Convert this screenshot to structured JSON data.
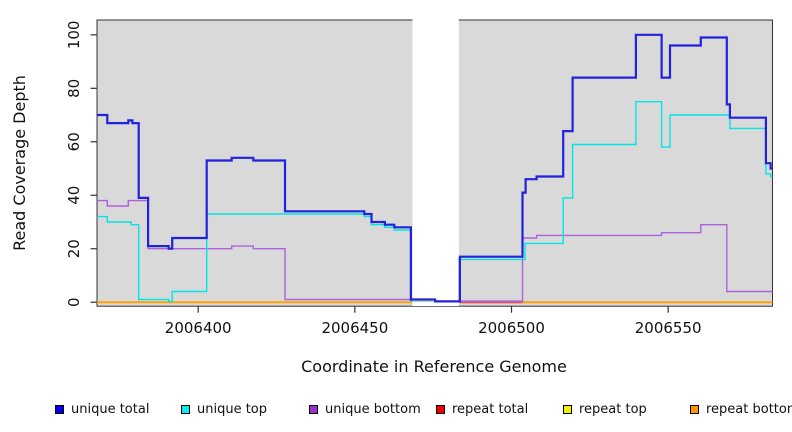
{
  "chart_data": {
    "type": "line",
    "subtype": "step-coverage-plot",
    "title": "",
    "xlabel": "Coordinate in Reference Genome",
    "ylabel": "Read Coverage Depth",
    "x_ticks": [
      "2006400",
      "2006450",
      "2006500",
      "2006550"
    ],
    "x_tick_values": [
      2006400,
      2006450,
      2006500,
      2006550
    ],
    "y_ticks": [
      "0",
      "20",
      "40",
      "60",
      "80",
      "100"
    ],
    "y_tick_values": [
      0,
      20,
      40,
      60,
      80,
      100
    ],
    "xlim": [
      2006367.7,
      2006583.3
    ],
    "ylim": [
      0,
      105.5
    ],
    "grid": false,
    "plot_background": "#d9d9d9",
    "masked_region": {
      "x0": 2006468,
      "x1": 2006483.5,
      "color": "#ffffff",
      "baseline_color": "#b7e0ae",
      "baseline_value": 0.3
    },
    "series": [
      {
        "name": "repeat bottom",
        "color": "#ff9f00",
        "width": 2,
        "points": [
          [
            2006367.7,
            0
          ]
        ],
        "end_x": 2006583.3
      },
      {
        "name": "repeat total",
        "color": "#e0506e",
        "width": 2,
        "points": [
          [
            2006483.5,
            0
          ]
        ],
        "end_x": 2006503.5
      },
      {
        "name": "repeat top",
        "color": "#e8e800",
        "width": 1.4,
        "points": [
          [
            2006468,
            0
          ]
        ],
        "end_x": 2006483.5
      },
      {
        "name": "unique bottom",
        "color": "#ad62dd",
        "width": 1.4,
        "points": [
          [
            2006367.7,
            38
          ],
          [
            2006371,
            36
          ],
          [
            2006377.7,
            38
          ],
          [
            2006384,
            20
          ],
          [
            2006410.7,
            21
          ],
          [
            2006417.6,
            20
          ],
          [
            2006427.7,
            1
          ],
          [
            2006467.9,
            0.4
          ],
          [
            2006503.5,
            24
          ],
          [
            2006508,
            25
          ],
          [
            2006547.9,
            26
          ],
          [
            2006560.4,
            29
          ],
          [
            2006568.7,
            4
          ]
        ],
        "end_x": 2006583.3
      },
      {
        "name": "unique top",
        "color": "#00e6e6",
        "width": 1.4,
        "points": [
          [
            2006367.7,
            32
          ],
          [
            2006371,
            30
          ],
          [
            2006378.6,
            29
          ],
          [
            2006381,
            1
          ],
          [
            2006390.6,
            0.3
          ],
          [
            2006391.7,
            4
          ],
          [
            2006402.7,
            33
          ],
          [
            2006453,
            32
          ],
          [
            2006455.3,
            29
          ],
          [
            2006459.6,
            28
          ],
          [
            2006462.6,
            27
          ],
          [
            2006467.9,
            0.3
          ],
          [
            2006483.5,
            16
          ],
          [
            2006504.3,
            22
          ],
          [
            2006516.5,
            39
          ],
          [
            2006519.5,
            59
          ],
          [
            2006539.7,
            75
          ],
          [
            2006547.9,
            58
          ],
          [
            2006550.6,
            70
          ],
          [
            2006569.7,
            65
          ],
          [
            2006581.2,
            48
          ],
          [
            2006582.7,
            47
          ]
        ],
        "end_x": 2006583.3
      },
      {
        "name": "unique total",
        "color": "#2222dd",
        "width": 2.2,
        "points": [
          [
            2006367.7,
            70
          ],
          [
            2006371,
            67
          ],
          [
            2006377.7,
            68
          ],
          [
            2006379,
            67
          ],
          [
            2006381,
            39
          ],
          [
            2006384,
            21
          ],
          [
            2006390.6,
            20
          ],
          [
            2006391.7,
            24
          ],
          [
            2006402.7,
            53
          ],
          [
            2006410.7,
            54
          ],
          [
            2006417.6,
            53
          ],
          [
            2006427.7,
            34
          ],
          [
            2006453,
            33
          ],
          [
            2006455.3,
            30
          ],
          [
            2006459.6,
            29
          ],
          [
            2006462.6,
            28
          ],
          [
            2006467.9,
            1
          ],
          [
            2006475.6,
            0.3
          ],
          [
            2006483.5,
            17
          ],
          [
            2006503.5,
            41
          ],
          [
            2006504.5,
            46
          ],
          [
            2006508,
            47
          ],
          [
            2006516.5,
            64
          ],
          [
            2006519.5,
            84
          ],
          [
            2006539.7,
            100
          ],
          [
            2006547.9,
            84
          ],
          [
            2006550.6,
            96
          ],
          [
            2006560.4,
            99
          ],
          [
            2006568.7,
            74
          ],
          [
            2006569.7,
            69
          ],
          [
            2006581.2,
            52
          ],
          [
            2006582.7,
            50
          ]
        ],
        "end_x": 2006583.3
      }
    ]
  },
  "legend": {
    "items": [
      {
        "label": "unique total",
        "color": "#0000ee"
      },
      {
        "label": "unique top",
        "color": "#00eeee"
      },
      {
        "label": "unique bottom",
        "color": "#9932cc"
      },
      {
        "label": "repeat total",
        "color": "#ee0000"
      },
      {
        "label": "repeat top",
        "color": "#f2f200"
      },
      {
        "label": "repeat bottom",
        "color": "#ff9800"
      }
    ]
  }
}
